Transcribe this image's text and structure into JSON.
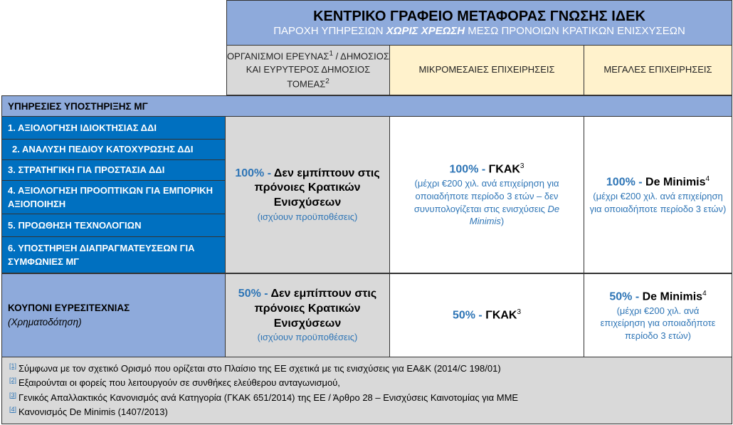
{
  "header": {
    "title": "ΚΕΝΤΡΙΚΟ ΓΡΑΦΕΙΟ ΜΕΤΑΦΟΡΑΣ ΓΝΩΣΗΣ ΙΔΕΚ",
    "subtitle_pre": "ΠΑΡΟΧΗ ΥΠΗΡΕΣΙΩΝ ",
    "subtitle_em": "ΧΩΡΙΣ ΧΡΕΩΣΗ",
    "subtitle_post": " ΜΕΣΩ ΠΡΟΝΟΙΩΝ ΚΡΑΤΙΚΩΝ ΕΝΙΣΧΥΣΕΩΝ"
  },
  "columns": [
    {
      "label_a": "ΟΡΓΑΝΙΣΜΟΙ ΕΡΕΥΝΑΣ",
      "sup_a": "1",
      "label_b": " / ΔΗΜΟΣΙΟΣ ΚΑΙ ΕΥΡΥΤΕΡΟΣ ΔΗΜΟΣΙΟΣ ΤΟΜΕΑΣ",
      "sup_b": "2"
    },
    {
      "label": "ΜΙΚΡΟΜΕΣΑΙΕΣ ΕΠΙΧΕΙΡΗΣΕΙΣ"
    },
    {
      "label": "ΜΕΓΑΛΕΣ ΕΠΙΧΕΙΡΗΣΕΙΣ"
    }
  ],
  "section": "ΥΠΗΡΕΣΙΕΣ ΥΠΟΣΤΗΡΙΞΗΣ ΜΓ",
  "services": [
    "1. ΑΞΙΟΛΟΓΗΣΗ ΙΔΙΟΚΤΗΣΙΑΣ ΔΔΙ",
    "2. ΑΝΑΛΥΣΗ ΠΕΔΙΟΥ ΚΑΤΟΧΥΡΩΣΗΣ ΔΔΙ",
    "3. ΣΤΡΑΤΗΓΙΚΗ ΓΙΑ ΠΡΟΣΤΑΣΙΑ ΔΔΙ",
    "4. ΑΞΙΟΛΟΓΗΣΗ ΠΡΟΟΠΤΙΚΩΝ ΓΙΑ ΕΜΠΟΡΙΚΗ ΑΞΙΟΠΟΙΗΣΗ",
    "5. ΠΡΟΩΘΗΣΗ ΤΕΧΝΟΛΟΓΙΩΝ",
    "6. ΥΠΟΣΤΗΡΙΞΗ ΔΙΑΠΡΑΓΜΑΤΕΥΣΕΩΝ ΓΙΑ ΣΥΜΦΩΝΙΕΣ ΜΓ"
  ],
  "row1": {
    "c1": {
      "pct": "100% - ",
      "text": "Δεν εμπίπτουν στις πρόνοιες Κρατικών Ενισχύσεων",
      "note": "(ισχύουν προϋποθέσεις)"
    },
    "c2": {
      "pct": "100% - ",
      "text": "ΓΚΑΚ",
      "sup": "3",
      "note": "(μέχρι €200 χιλ. ανά επιχείρηση για οποιαδήποτε περίοδο 3 ετών – δεν συνυπολογίζεται στις ενισχύσεις ",
      "note_em": "De Minimis",
      "note_end": ")"
    },
    "c3": {
      "pct": "100% - ",
      "text": "De Minimis",
      "sup": "4",
      "note": "(μέχρι €200 χιλ. ανά επιχείρηση για οποιαδήποτε περίοδο 3 ετών)"
    }
  },
  "row2": {
    "label": "ΚΟΥΠΟΝΙ ΕΥΡΕΣΙΤΕΧΝΙΑΣ",
    "sublabel": "(Χρηματοδότηση)",
    "c1": {
      "pct": "50% - ",
      "text": "Δεν εμπίπτουν στις πρόνοιες Κρατικών Ενισχύσεων",
      "note": "(ισχύουν προϋποθέσεις)"
    },
    "c2": {
      "pct": "50% - ",
      "text": "ΓΚΑΚ",
      "sup": "3"
    },
    "c3": {
      "pct": "50% - ",
      "text": "De Minimis",
      "sup": "4",
      "note": "(μέχρι €200 χιλ. ανά επιχείρηση για οποιαδήποτε περίοδο 3 ετών)"
    }
  },
  "footnotes": [
    {
      "ref": "[1]",
      "text": "Σύμφωνα με τον σχετικό Ορισμό που ορίζεται στο Πλαίσιο της ΕΕ σχετικά με τις ενισχύσεις για ΕΑ&Κ (2014/C 198/01)"
    },
    {
      "ref": "[2]",
      "text": "Εξαιρούνται οι φορείς που λειτουργούν σε συνθήκες ελεύθερου  ανταγωνισμού,"
    },
    {
      "ref": "[3]",
      "text": "Γενικός Απαλλακτικός Κανονισμός ανά Κατηγορία (ΓΚΑΚ 651/2014)  της ΕΕ / Άρθρο 28 – Ενισχύσεις Καινοτομίας για ΜΜΕ"
    },
    {
      "ref": "[4]",
      "text": "Κανονισμός De Minimis (1407/2013)"
    }
  ],
  "colors": {
    "header": "#8eaadb",
    "service_blue": "#0070c0",
    "accent_text": "#2e75b6",
    "gray": "#d9d9d9",
    "sme_header": "#fff2cc"
  }
}
